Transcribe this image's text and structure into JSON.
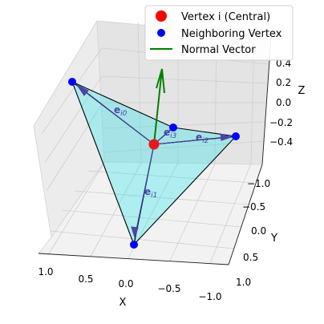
{
  "chart_data": {
    "type": "scatter3d",
    "title": "",
    "axes": {
      "x": {
        "label": "X",
        "ticks": [
          "1.0",
          "0.5",
          "0.0",
          "−0.5",
          "−1.0"
        ]
      },
      "y": {
        "label": "Y",
        "ticks": [
          "−1.0",
          "−0.5",
          "0.0",
          "0.5",
          "1.0"
        ]
      },
      "z": {
        "label": "Z",
        "ticks": [
          "0.4",
          "0.2",
          "0.0",
          "−0.2",
          "−0.4"
        ]
      }
    },
    "central_vertex": {
      "name": "Vertex i (Central)",
      "color": "#ff0000"
    },
    "neighbors": {
      "name": "Neighboring Vertex",
      "color": "#0000ff",
      "count": 4
    },
    "normal": {
      "name": "Normal Vector",
      "color": "#008000"
    },
    "edge_labels": [
      "e_i0",
      "e_i1",
      "e_i2",
      "e_i3"
    ],
    "face_color": "#00e5ee",
    "legend": {
      "placement": "top-right"
    }
  }
}
